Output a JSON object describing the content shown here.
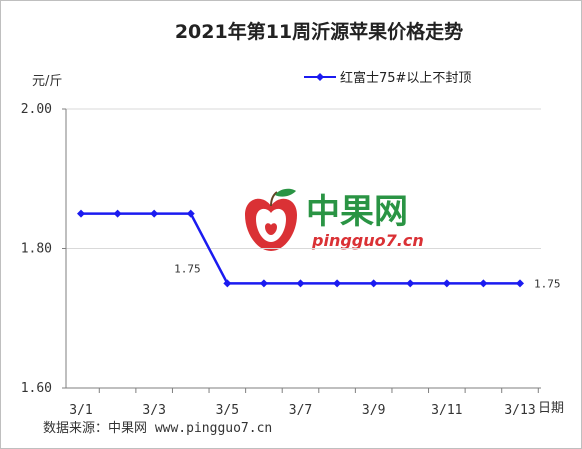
{
  "colors": {
    "series": "#1b1bf0",
    "grid": "#d9d9d9",
    "axis": "#7f7f7f",
    "watermark_green": "#1f8f3a",
    "watermark_red": "#d9262b"
  },
  "watermark": {
    "name_cn": "中果网",
    "domain": "pingguo7.cn"
  },
  "source_note": "数据来源：中果网 www.pingguo7.cn",
  "chart_data": {
    "type": "line",
    "title": "2021年第11周沂源苹果价格走势",
    "ylabel": "元/斤",
    "xlabel": "日期",
    "ylim": [
      1.6,
      2.0
    ],
    "yticks": [
      {
        "value": 1.6,
        "label": "1.60"
      },
      {
        "value": 1.8,
        "label": "1.80"
      },
      {
        "value": 2.0,
        "label": "2.00"
      }
    ],
    "xticks": [
      "3/1",
      "3/3",
      "3/5",
      "3/7",
      "3/9",
      "3/11",
      "3/13"
    ],
    "grid": true,
    "legend_position": "top-right",
    "series": [
      {
        "name": "红富士75#以上不封顶",
        "x": [
          "3/1",
          "3/2",
          "3/3",
          "3/4",
          "3/5",
          "3/6",
          "3/7",
          "3/8",
          "3/9",
          "3/10",
          "3/11",
          "3/12",
          "3/13"
        ],
        "values": [
          1.85,
          1.85,
          1.85,
          1.85,
          1.75,
          1.75,
          1.75,
          1.75,
          1.75,
          1.75,
          1.75,
          1.75,
          1.75
        ]
      }
    ],
    "annotations": [
      {
        "x": "3/5",
        "y": 1.75,
        "text": "1.75"
      },
      {
        "x": "3/13",
        "y": 1.75,
        "text": "1.75"
      }
    ]
  }
}
